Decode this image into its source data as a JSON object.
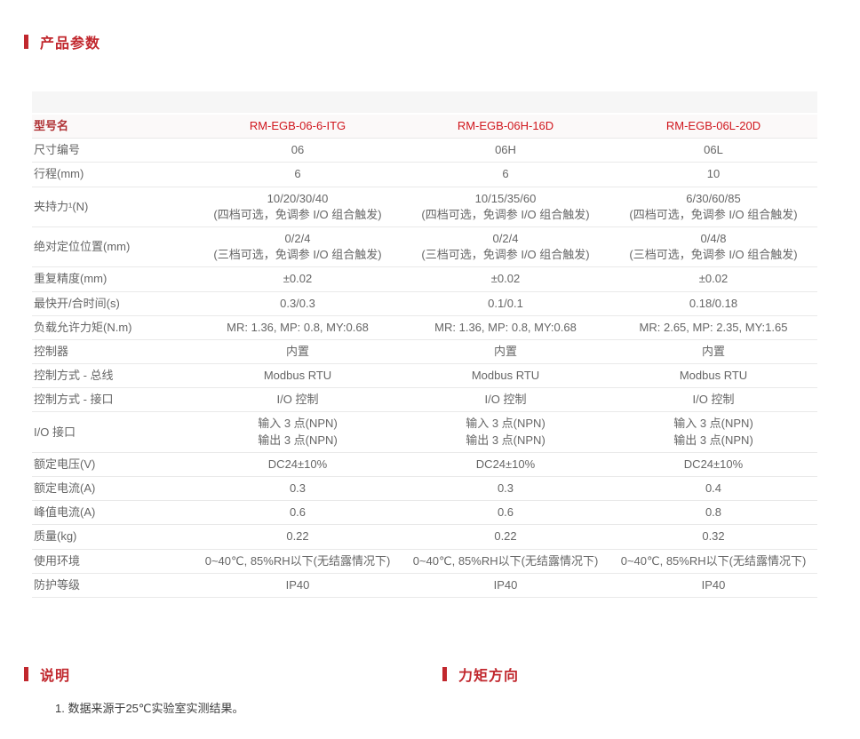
{
  "colors": {
    "accent_red": "#c1272d",
    "model_name_red": "#d0161d",
    "header_label_red": "#b03235",
    "body_text_gray": "#666666",
    "table_band_gray": "#f6f6f6",
    "header_row_bg": "#fbf9f9",
    "row_divider": "#e9e9e9"
  },
  "sections": {
    "params_title": "产品参数",
    "notes_title": "说明",
    "torque_title": "力矩方向"
  },
  "notes": {
    "note_1": "1. 数据来源于25℃实验室实测结果。"
  },
  "table": {
    "header": {
      "label": "型号名",
      "models": [
        "RM-EGB-06-6-ITG",
        "RM-EGB-06H-16D",
        "RM-EGB-06L-20D"
      ]
    },
    "rows": [
      {
        "label": "尺寸编号",
        "values": [
          "06",
          "06H",
          "06L"
        ]
      },
      {
        "label": "行程(mm)",
        "values": [
          "6",
          "6",
          "10"
        ]
      },
      {
        "label": "夹持力¹(N)",
        "values": [
          "10/20/30/40\n(四档可选，免调参 I/O 组合触发)",
          "10/15/35/60\n(四档可选，免调参 I/O 组合触发)",
          "6/30/60/85\n(四档可选，免调参 I/O 组合触发)"
        ]
      },
      {
        "label": "绝对定位位置(mm)",
        "values": [
          "0/2/4\n(三档可选，免调参 I/O 组合触发)",
          "0/2/4\n(三档可选，免调参 I/O 组合触发)",
          "0/4/8\n(三档可选，免调参 I/O 组合触发)"
        ]
      },
      {
        "label": "重复精度(mm)",
        "values": [
          "±0.02",
          "±0.02",
          "±0.02"
        ]
      },
      {
        "label": "最快开/合时间(s)",
        "values": [
          "0.3/0.3",
          "0.1/0.1",
          "0.18/0.18"
        ]
      },
      {
        "label": "负载允许力矩(N.m)",
        "values": [
          "MR: 1.36, MP: 0.8, MY:0.68",
          "MR: 1.36, MP: 0.8, MY:0.68",
          "MR: 2.65, MP: 2.35, MY:1.65"
        ]
      },
      {
        "label": "控制器",
        "values": [
          "内置",
          "内置",
          "内置"
        ]
      },
      {
        "label": "控制方式 - 总线",
        "values": [
          "Modbus RTU",
          "Modbus RTU",
          "Modbus RTU"
        ]
      },
      {
        "label": "控制方式 - 接口",
        "values": [
          "I/O 控制",
          "I/O 控制",
          "I/O 控制"
        ]
      },
      {
        "label": "I/O 接口",
        "values": [
          "输入 3 点(NPN)\n输出 3 点(NPN)",
          "输入 3 点(NPN)\n输出 3 点(NPN)",
          "输入 3 点(NPN)\n输出 3 点(NPN)"
        ]
      },
      {
        "label": "额定电压(V)",
        "values": [
          "DC24±10%",
          "DC24±10%",
          "DC24±10%"
        ]
      },
      {
        "label": "额定电流(A)",
        "values": [
          "0.3",
          "0.3",
          "0.4"
        ]
      },
      {
        "label": "峰值电流(A)",
        "values": [
          "0.6",
          "0.6",
          "0.8"
        ]
      },
      {
        "label": "质量(kg)",
        "values": [
          "0.22",
          "0.22",
          "0.32"
        ]
      },
      {
        "label": "使用环境",
        "values": [
          "0~40℃, 85%RH以下(无结露情况下)",
          "0~40℃, 85%RH以下(无结露情况下)",
          "0~40℃, 85%RH以下(无结露情况下)"
        ]
      },
      {
        "label": "防护等级",
        "values": [
          "IP40",
          "IP40",
          "IP40"
        ]
      }
    ]
  }
}
